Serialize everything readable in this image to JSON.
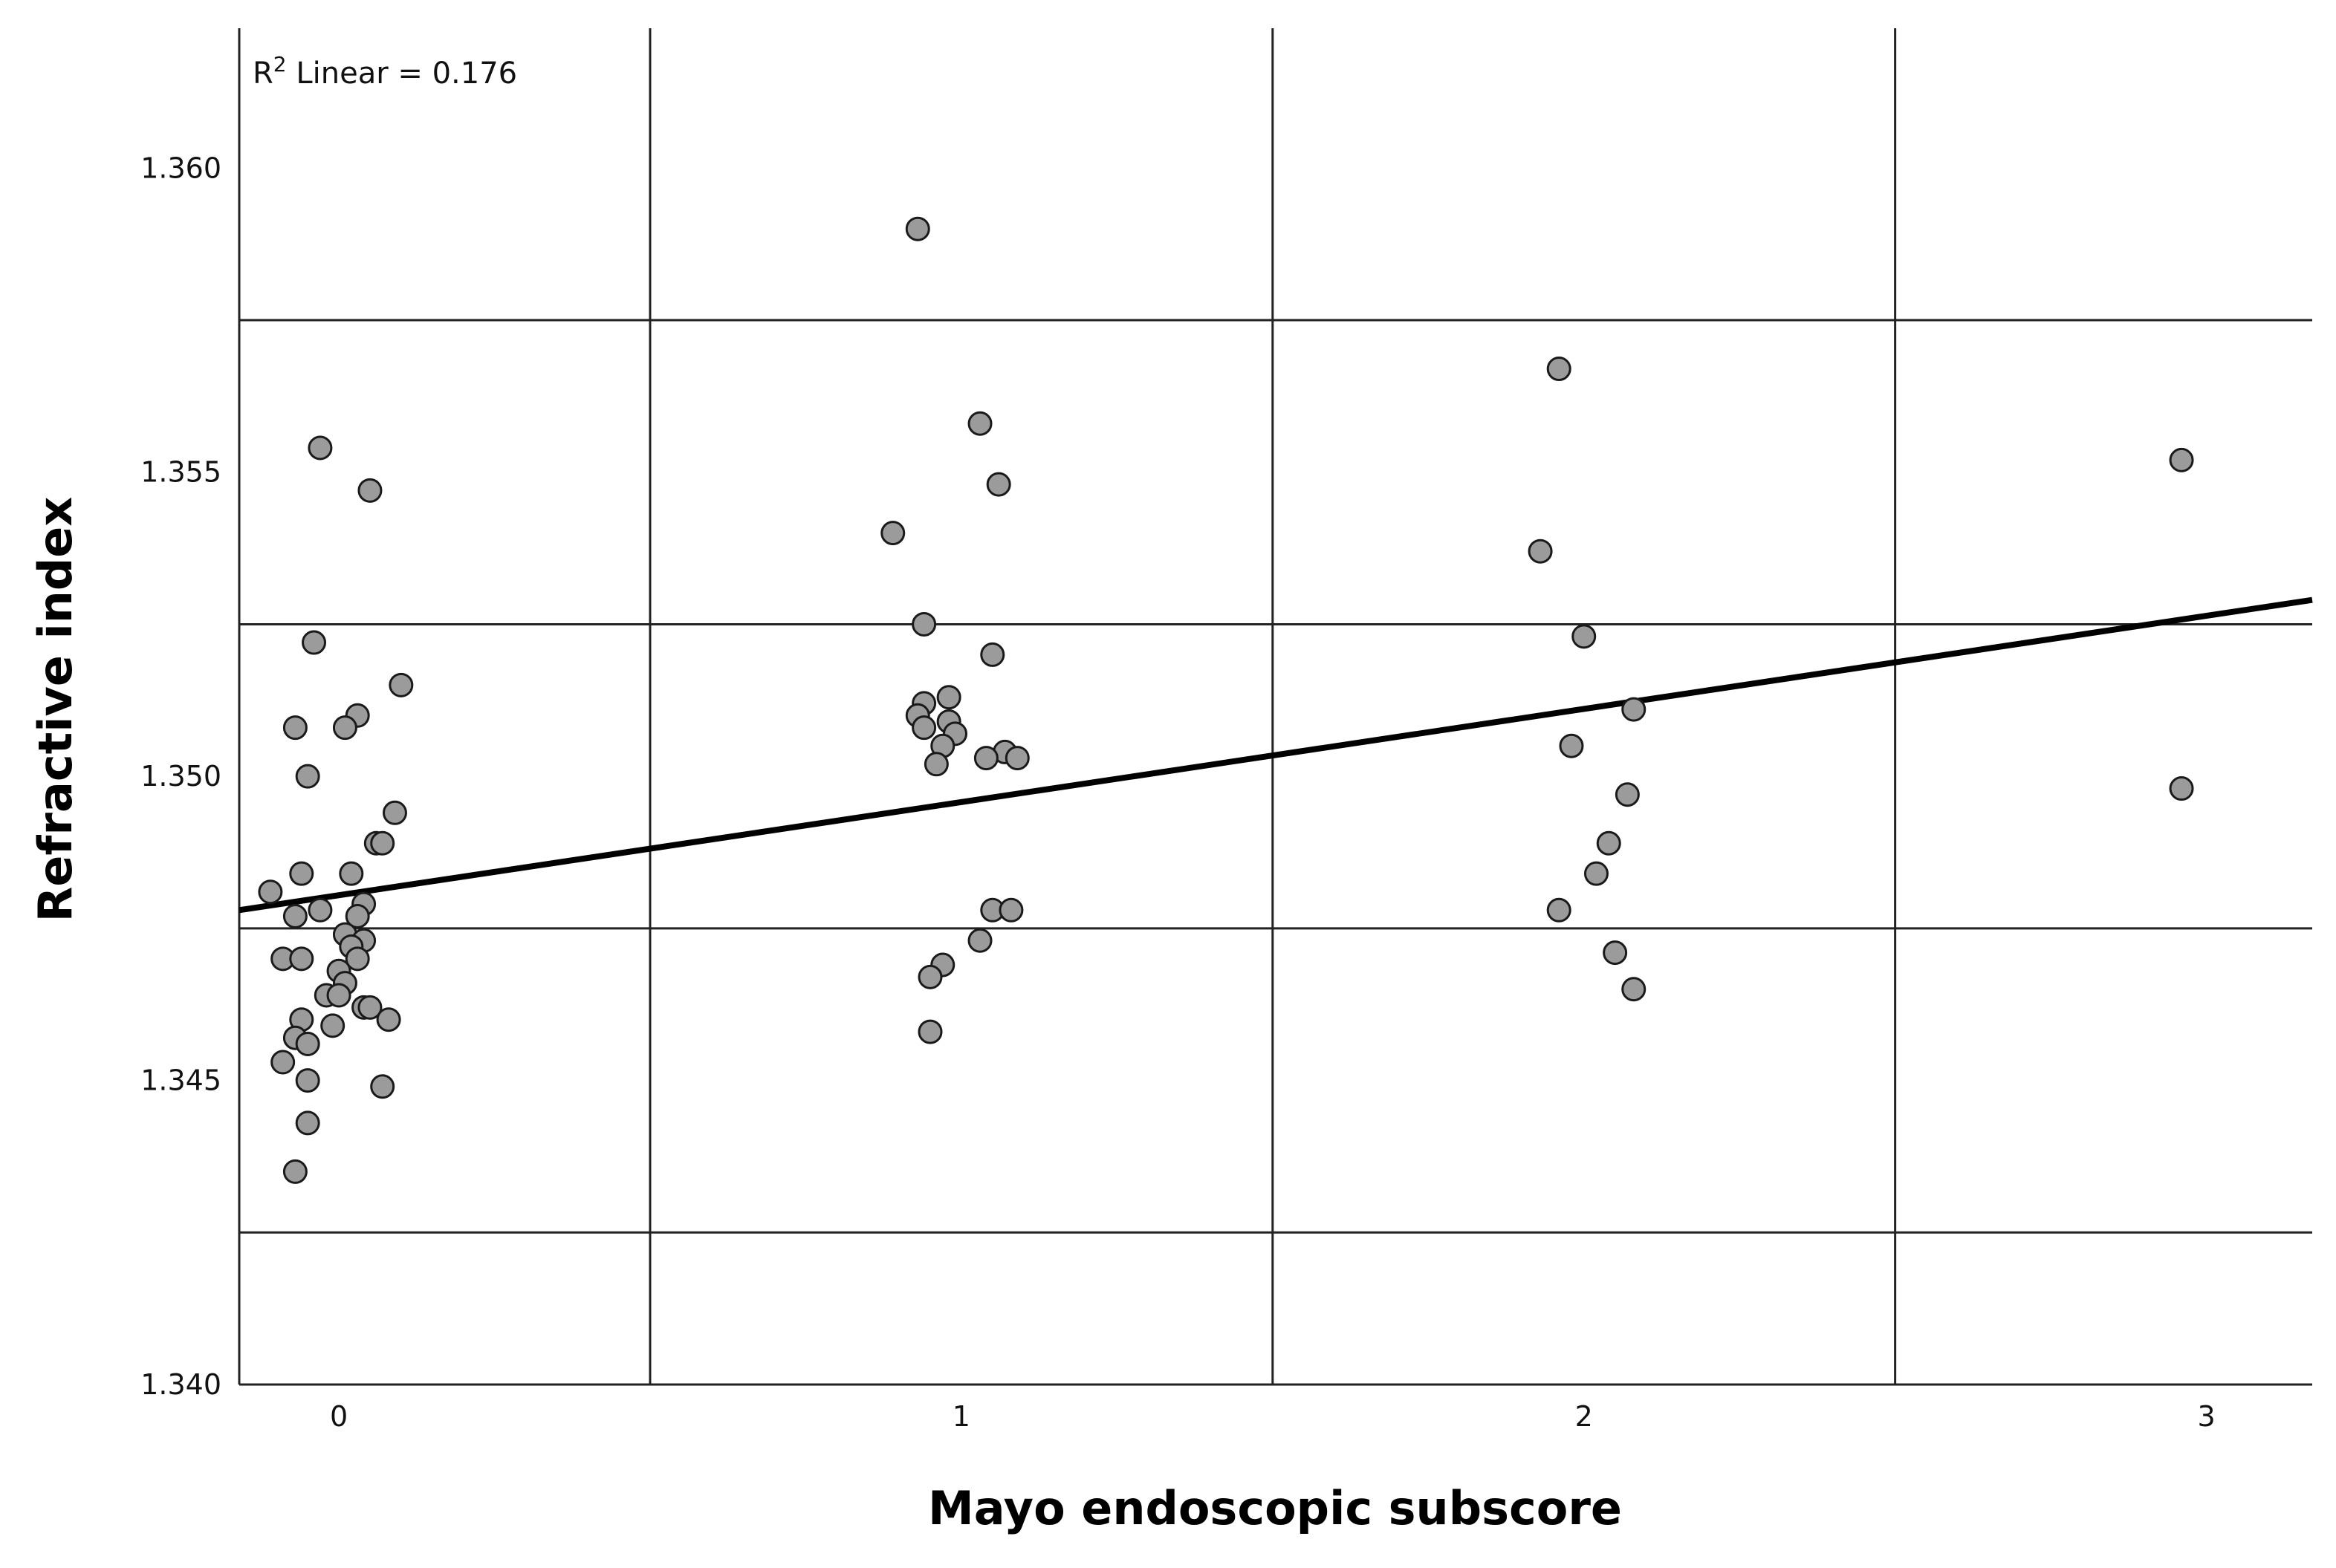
{
  "chart_data": {
    "type": "scatter",
    "title": "",
    "xlabel": "Mayo endoscopic subscore",
    "ylabel": "Refractive index",
    "x_ticks": [
      0,
      1,
      2,
      3
    ],
    "x_tick_labels": [
      "0",
      "1",
      "2",
      "3"
    ],
    "y_ticks": [
      1.34,
      1.345,
      1.35,
      1.355,
      1.36
    ],
    "y_tick_labels": [
      "1.340",
      "1.345",
      "1.350",
      "1.355",
      "1.360"
    ],
    "xlim": [
      -0.16,
      3.17
    ],
    "ylim": [
      1.34,
      1.3623
    ],
    "grid": true,
    "fit_line": {
      "label_prefix": "R",
      "label_sup": "2",
      "label_rest": " Linear = 0.176",
      "x": [
        -0.16,
        3.17
      ],
      "y": [
        1.3478,
        1.3529
      ]
    },
    "points": [
      {
        "x": -0.03,
        "y": 1.3554
      },
      {
        "x": 0.05,
        "y": 1.3547
      },
      {
        "x": -0.04,
        "y": 1.3522
      },
      {
        "x": 0.1,
        "y": 1.3515
      },
      {
        "x": 0.03,
        "y": 1.351
      },
      {
        "x": -0.07,
        "y": 1.3508
      },
      {
        "x": 0.01,
        "y": 1.3508
      },
      {
        "x": -0.05,
        "y": 1.35
      },
      {
        "x": 0.09,
        "y": 1.3494
      },
      {
        "x": 0.06,
        "y": 1.3489
      },
      {
        "x": 0.07,
        "y": 1.3489
      },
      {
        "x": -0.06,
        "y": 1.3484
      },
      {
        "x": 0.02,
        "y": 1.3484
      },
      {
        "x": -0.11,
        "y": 1.3481
      },
      {
        "x": 0.04,
        "y": 1.3479
      },
      {
        "x": -0.07,
        "y": 1.3477
      },
      {
        "x": -0.03,
        "y": 1.3478
      },
      {
        "x": 0.03,
        "y": 1.3477
      },
      {
        "x": 0.01,
        "y": 1.3474
      },
      {
        "x": 0.04,
        "y": 1.3473
      },
      {
        "x": 0.02,
        "y": 1.3472
      },
      {
        "x": -0.09,
        "y": 1.347
      },
      {
        "x": -0.06,
        "y": 1.347
      },
      {
        "x": 0.03,
        "y": 1.347
      },
      {
        "x": 0.0,
        "y": 1.3468
      },
      {
        "x": 0.01,
        "y": 1.3466
      },
      {
        "x": -0.02,
        "y": 1.3464
      },
      {
        "x": 0.0,
        "y": 1.3464
      },
      {
        "x": 0.04,
        "y": 1.3462
      },
      {
        "x": 0.05,
        "y": 1.3462
      },
      {
        "x": -0.06,
        "y": 1.346
      },
      {
        "x": 0.08,
        "y": 1.346
      },
      {
        "x": -0.01,
        "y": 1.3459
      },
      {
        "x": -0.07,
        "y": 1.3457
      },
      {
        "x": -0.05,
        "y": 1.3456
      },
      {
        "x": -0.09,
        "y": 1.3453
      },
      {
        "x": -0.05,
        "y": 1.345
      },
      {
        "x": 0.07,
        "y": 1.3449
      },
      {
        "x": -0.05,
        "y": 1.3443
      },
      {
        "x": -0.07,
        "y": 1.3435
      },
      {
        "x": 0.93,
        "y": 1.359
      },
      {
        "x": 1.03,
        "y": 1.3558
      },
      {
        "x": 1.06,
        "y": 1.3548
      },
      {
        "x": 0.89,
        "y": 1.354
      },
      {
        "x": 0.94,
        "y": 1.3525
      },
      {
        "x": 1.05,
        "y": 1.352
      },
      {
        "x": 0.98,
        "y": 1.3513
      },
      {
        "x": 0.94,
        "y": 1.3512
      },
      {
        "x": 0.93,
        "y": 1.351
      },
      {
        "x": 0.98,
        "y": 1.3509
      },
      {
        "x": 0.94,
        "y": 1.3508
      },
      {
        "x": 0.99,
        "y": 1.3507
      },
      {
        "x": 0.97,
        "y": 1.3505
      },
      {
        "x": 1.07,
        "y": 1.3504
      },
      {
        "x": 1.04,
        "y": 1.3503
      },
      {
        "x": 1.09,
        "y": 1.3503
      },
      {
        "x": 0.96,
        "y": 1.3502
      },
      {
        "x": 1.05,
        "y": 1.3478
      },
      {
        "x": 1.08,
        "y": 1.3478
      },
      {
        "x": 1.03,
        "y": 1.3473
      },
      {
        "x": 0.97,
        "y": 1.3469
      },
      {
        "x": 0.95,
        "y": 1.3467
      },
      {
        "x": 0.95,
        "y": 1.3458
      },
      {
        "x": 1.96,
        "y": 1.3567
      },
      {
        "x": 1.93,
        "y": 1.3537
      },
      {
        "x": 2.0,
        "y": 1.3523
      },
      {
        "x": 2.08,
        "y": 1.3511
      },
      {
        "x": 1.98,
        "y": 1.3505
      },
      {
        "x": 2.07,
        "y": 1.3497
      },
      {
        "x": 2.04,
        "y": 1.3489
      },
      {
        "x": 2.02,
        "y": 1.3484
      },
      {
        "x": 1.96,
        "y": 1.3478
      },
      {
        "x": 2.05,
        "y": 1.3471
      },
      {
        "x": 2.08,
        "y": 1.3465
      },
      {
        "x": 2.96,
        "y": 1.3552
      },
      {
        "x": 2.96,
        "y": 1.3498
      }
    ]
  }
}
